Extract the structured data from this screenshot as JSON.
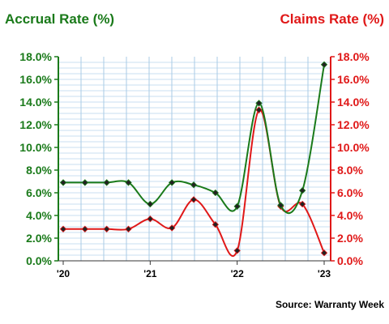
{
  "chart_data": {
    "type": "line",
    "title_left": "Accrual Rate (%)",
    "title_right": "Claims Rate (%)",
    "source": "Source: Warranty Week",
    "x_tick_labels": [
      "'20",
      "'21",
      "'22",
      "'23"
    ],
    "x_tick_positions": [
      0,
      4,
      8,
      12
    ],
    "y_ticks": [
      "0.0%",
      "2.0%",
      "4.0%",
      "6.0%",
      "8.0%",
      "10.0%",
      "12.0%",
      "14.0%",
      "16.0%",
      "18.0%"
    ],
    "ylim": [
      0,
      18
    ],
    "xlim": [
      0,
      12
    ],
    "grid": true,
    "series": [
      {
        "name": "Accrual Rate (%)",
        "color": "#1a7a1a",
        "x": [
          0,
          1,
          2,
          3,
          4,
          5,
          6,
          7,
          8,
          9,
          10,
          11,
          12
        ],
        "values": [
          6.9,
          6.9,
          6.9,
          6.9,
          5.0,
          6.9,
          6.7,
          6.0,
          4.8,
          13.9,
          4.9,
          6.2,
          17.3
        ]
      },
      {
        "name": "Claims Rate (%)",
        "color": "#e01818",
        "x": [
          0,
          1,
          2,
          3,
          4,
          5,
          6,
          7,
          8,
          9,
          10,
          11,
          12
        ],
        "values": [
          2.8,
          2.8,
          2.8,
          2.8,
          3.7,
          2.9,
          5.4,
          3.2,
          0.9,
          13.3,
          4.8,
          5.0,
          0.7
        ]
      }
    ]
  }
}
